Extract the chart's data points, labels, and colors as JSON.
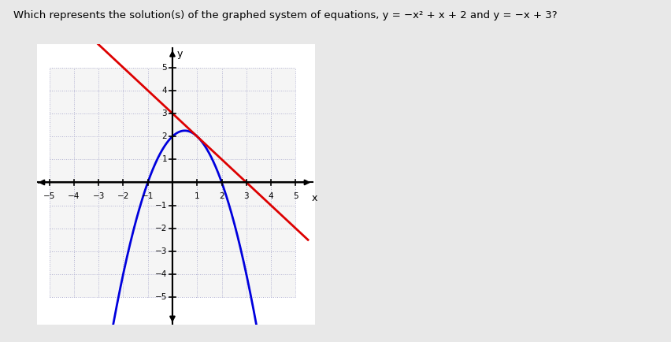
{
  "title_plain": "Which represents the solution(s) of the graphed system of equations, ",
  "title_eq1": "y = −x² + x + 2",
  "title_mid": " and ",
  "title_eq2": "y = −x + 3",
  "title_end": "?",
  "xlim": [
    -5.5,
    5.8
  ],
  "ylim": [
    -6.2,
    6.0
  ],
  "grid_xmin": -5,
  "grid_xmax": 5,
  "grid_ymin": -5,
  "grid_ymax": 5,
  "xticks": [
    -5,
    -4,
    -3,
    -2,
    -1,
    1,
    2,
    3,
    4,
    5
  ],
  "yticks": [
    -5,
    -4,
    -3,
    -2,
    -1,
    1,
    2,
    3,
    4,
    5
  ],
  "parabola_color": "#0000dd",
  "line_color": "#dd0000",
  "grid_color": "#b0b0d0",
  "grid_bg": "#f5f5f5",
  "background_color": "#ffffff",
  "axis_color": "#000000",
  "figure_bg": "#e8e8e8"
}
